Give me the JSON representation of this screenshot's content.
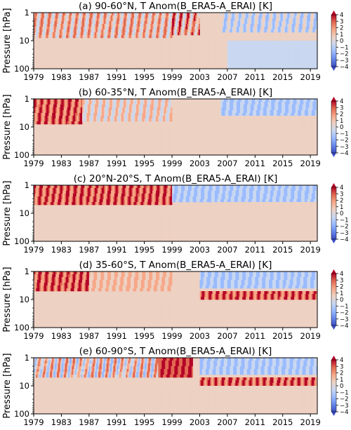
{
  "figure": {
    "ylabel": "Pressure [hPa]",
    "colormap": [
      "#3b4cc0",
      "#6788ee",
      "#9abbff",
      "#c9d7f0",
      "#edd1c2",
      "#f7a889",
      "#e26952",
      "#b40426"
    ],
    "colorbar_ticks": [
      "4",
      "3",
      "2",
      "1",
      "0",
      "−1",
      "−2",
      "−3",
      "−4"
    ]
  },
  "chart_data": [
    {
      "type": "heatmap",
      "title": "(a) 90-60°N, T Anom(B_ERA5-A_ERAI) [K]",
      "xlabel": "",
      "ylabel": "Pressure [hPa]",
      "x_ticks": [
        "1979",
        "1983",
        "1987",
        "1991",
        "1995",
        "1999",
        "2003",
        "2007",
        "2011",
        "2015",
        "2019"
      ],
      "y_ticks": [
        "1",
        "10",
        "100"
      ],
      "y_scale": "log",
      "y_inverted": true,
      "xlim": [
        1979,
        2020
      ],
      "ylim": [
        100,
        1
      ],
      "colorbar_range": [
        -4,
        4
      ],
      "regimes": [
        {
          "period": [
            1979,
            1999
          ],
          "levels_hPa": [
            1,
            8
          ],
          "anomaly_K": [
            -1,
            3
          ]
        },
        {
          "period": [
            1999,
            2003
          ],
          "levels_hPa": [
            1,
            6
          ],
          "anomaly_K": [
            -1,
            4
          ]
        },
        {
          "period": [
            2006,
            2020
          ],
          "levels_hPa": [
            1,
            5
          ],
          "anomaly_K": [
            -2,
            1
          ]
        },
        {
          "period": [
            1979,
            2007
          ],
          "levels_hPa": [
            10,
            100
          ],
          "anomaly_K": [
            0,
            1
          ]
        },
        {
          "period": [
            2007,
            2020
          ],
          "levels_hPa": [
            10,
            100
          ],
          "anomaly_K": [
            -1,
            0
          ]
        }
      ]
    },
    {
      "type": "heatmap",
      "title": "(b) 60-35°N, T Anom(B_ERA5-A_ERAI) [K]",
      "xlabel": "",
      "ylabel": "Pressure [hPa]",
      "x_ticks": [
        "1979",
        "1983",
        "1987",
        "1991",
        "1995",
        "1999",
        "2003",
        "2007",
        "2011",
        "2015",
        "2019"
      ],
      "y_ticks": [
        "1",
        "10",
        "100"
      ],
      "y_scale": "log",
      "y_inverted": true,
      "xlim": [
        1979,
        2020
      ],
      "ylim": [
        100,
        1
      ],
      "colorbar_range": [
        -4,
        4
      ],
      "regimes": [
        {
          "period": [
            1979,
            1986
          ],
          "levels_hPa": [
            1,
            8
          ],
          "anomaly_K": [
            1,
            4
          ]
        },
        {
          "period": [
            1986,
            1999
          ],
          "levels_hPa": [
            1,
            6
          ],
          "anomaly_K": [
            -1,
            2
          ]
        },
        {
          "period": [
            2006,
            2020
          ],
          "levels_hPa": [
            1,
            4
          ],
          "anomaly_K": [
            -2,
            0
          ]
        },
        {
          "period": [
            2006,
            2020
          ],
          "levels_hPa": [
            4,
            10
          ],
          "anomaly_K": [
            0,
            1
          ]
        },
        {
          "period": [
            1979,
            1999
          ],
          "levels_hPa": [
            10,
            100
          ],
          "anomaly_K": [
            0,
            1
          ]
        }
      ]
    },
    {
      "type": "heatmap",
      "title": "(c) 20°N-20°S, T Anom(B_ERA5-A_ERAI) [K]",
      "xlabel": "",
      "ylabel": "Pressure [hPa]",
      "x_ticks": [
        "1979",
        "1983",
        "1987",
        "1991",
        "1995",
        "1999",
        "2003",
        "2007",
        "2011",
        "2015",
        "2019"
      ],
      "y_ticks": [
        "1",
        "10",
        "100"
      ],
      "y_scale": "log",
      "y_inverted": true,
      "xlim": [
        1979,
        2020
      ],
      "ylim": [
        100,
        1
      ],
      "colorbar_range": [
        -4,
        4
      ],
      "regimes": [
        {
          "period": [
            1979,
            1999
          ],
          "levels_hPa": [
            1,
            5
          ],
          "anomaly_K": [
            1,
            4
          ]
        },
        {
          "period": [
            1999,
            2020
          ],
          "levels_hPa": [
            1,
            4
          ],
          "anomaly_K": [
            -2,
            0
          ]
        },
        {
          "period": [
            2006,
            2020
          ],
          "levels_hPa": [
            4,
            9
          ],
          "anomaly_K": [
            0,
            1
          ]
        },
        {
          "period": [
            1979,
            1999
          ],
          "levels_hPa": [
            8,
            100
          ],
          "anomaly_K": [
            0,
            1
          ]
        }
      ]
    },
    {
      "type": "heatmap",
      "title": "(d) 35-60°S, T Anom(B_ERA5-A_ERAI) [K]",
      "xlabel": "",
      "ylabel": "Pressure [hPa]",
      "x_ticks": [
        "1979",
        "1983",
        "1987",
        "1991",
        "1995",
        "1999",
        "2003",
        "2007",
        "2011",
        "2015",
        "2019"
      ],
      "y_ticks": [
        "1",
        "10",
        "100"
      ],
      "y_scale": "log",
      "y_inverted": true,
      "xlim": [
        1979,
        2020
      ],
      "ylim": [
        100,
        1
      ],
      "colorbar_range": [
        -4,
        4
      ],
      "regimes": [
        {
          "period": [
            1979,
            1987
          ],
          "levels_hPa": [
            1,
            5
          ],
          "anomaly_K": [
            1,
            4
          ]
        },
        {
          "period": [
            1987,
            1999
          ],
          "levels_hPa": [
            1,
            5
          ],
          "anomaly_K": [
            0,
            2
          ]
        },
        {
          "period": [
            2003,
            2020
          ],
          "levels_hPa": [
            1,
            4
          ],
          "anomaly_K": [
            -2,
            0
          ]
        },
        {
          "period": [
            2003,
            2020
          ],
          "levels_hPa": [
            5,
            10
          ],
          "anomaly_K": [
            1,
            4
          ]
        },
        {
          "period": [
            1979,
            2000
          ],
          "levels_hPa": [
            10,
            100
          ],
          "anomaly_K": [
            0,
            1
          ]
        }
      ]
    },
    {
      "type": "heatmap",
      "title": "(e) 60-90°S, T Anom(B_ERA5-A_ERAI) [K]",
      "xlabel": "",
      "ylabel": "Pressure [hPa]",
      "x_ticks": [
        "1979",
        "1983",
        "1987",
        "1991",
        "1995",
        "1999",
        "2003",
        "2007",
        "2011",
        "2015",
        "2019"
      ],
      "y_ticks": [
        "1",
        "10",
        "100"
      ],
      "y_scale": "log",
      "y_inverted": true,
      "xlim": [
        1979,
        2020
      ],
      "ylim": [
        100,
        1
      ],
      "colorbar_range": [
        -4,
        4
      ],
      "regimes": [
        {
          "period": [
            1979,
            1999
          ],
          "levels_hPa": [
            1,
            5
          ],
          "anomaly_K": [
            -2,
            3
          ]
        },
        {
          "period": [
            1997,
            2002
          ],
          "levels_hPa": [
            1,
            5
          ],
          "anomaly_K": [
            2,
            4
          ]
        },
        {
          "period": [
            2003,
            2020
          ],
          "levels_hPa": [
            1,
            4
          ],
          "anomaly_K": [
            -2,
            0
          ]
        },
        {
          "period": [
            2003,
            2020
          ],
          "levels_hPa": [
            5,
            10
          ],
          "anomaly_K": [
            1,
            4
          ]
        },
        {
          "period": [
            1979,
            2020
          ],
          "levels_hPa": [
            10,
            100
          ],
          "anomaly_K": [
            0,
            1
          ]
        }
      ]
    }
  ]
}
